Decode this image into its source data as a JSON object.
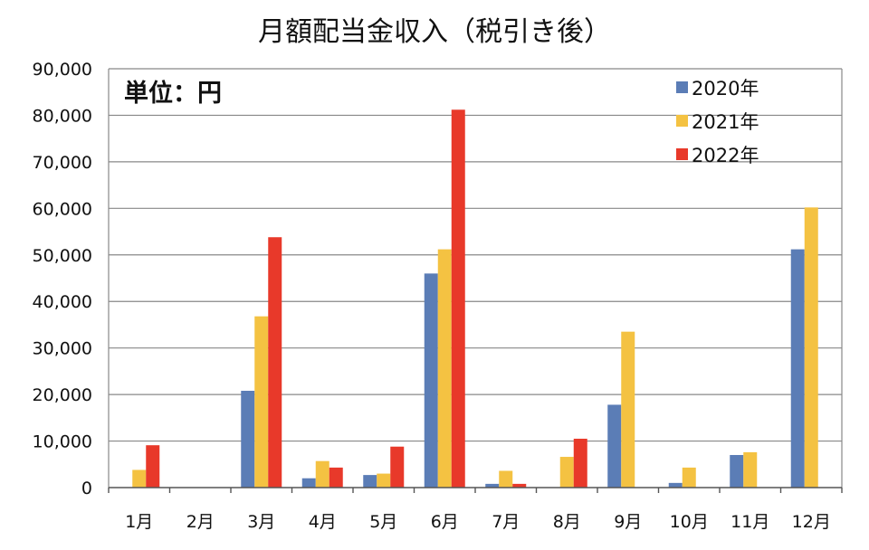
{
  "chart_data": {
    "type": "bar",
    "title": "月額配当金収入（税引き後）",
    "unit_label": "単位：円",
    "categories": [
      "1月",
      "2月",
      "3月",
      "4月",
      "5月",
      "6月",
      "7月",
      "8月",
      "9月",
      "10月",
      "11月",
      "12月"
    ],
    "ylim": [
      0,
      90000
    ],
    "yticks": [
      "0",
      "10,000",
      "20,000",
      "30,000",
      "40,000",
      "50,000",
      "60,000",
      "70,000",
      "80,000",
      "90,000"
    ],
    "ytick_values": [
      0,
      10000,
      20000,
      30000,
      40000,
      50000,
      60000,
      70000,
      80000,
      90000
    ],
    "grid": true,
    "legend_position": "top-right",
    "series": [
      {
        "name": "2020年",
        "color": "#5b7db6",
        "values": [
          0,
          0,
          20800,
          2000,
          2700,
          46000,
          800,
          0,
          17800,
          1000,
          7000,
          51200
        ]
      },
      {
        "name": "2021年",
        "color": "#f4c242",
        "values": [
          3800,
          0,
          36800,
          5700,
          3000,
          51200,
          3600,
          6600,
          33500,
          4300,
          7600,
          60200
        ]
      },
      {
        "name": "2022年",
        "color": "#e8392a",
        "values": [
          9100,
          0,
          53800,
          4300,
          8800,
          81200,
          800,
          10500,
          0,
          0,
          0,
          0
        ]
      }
    ]
  }
}
